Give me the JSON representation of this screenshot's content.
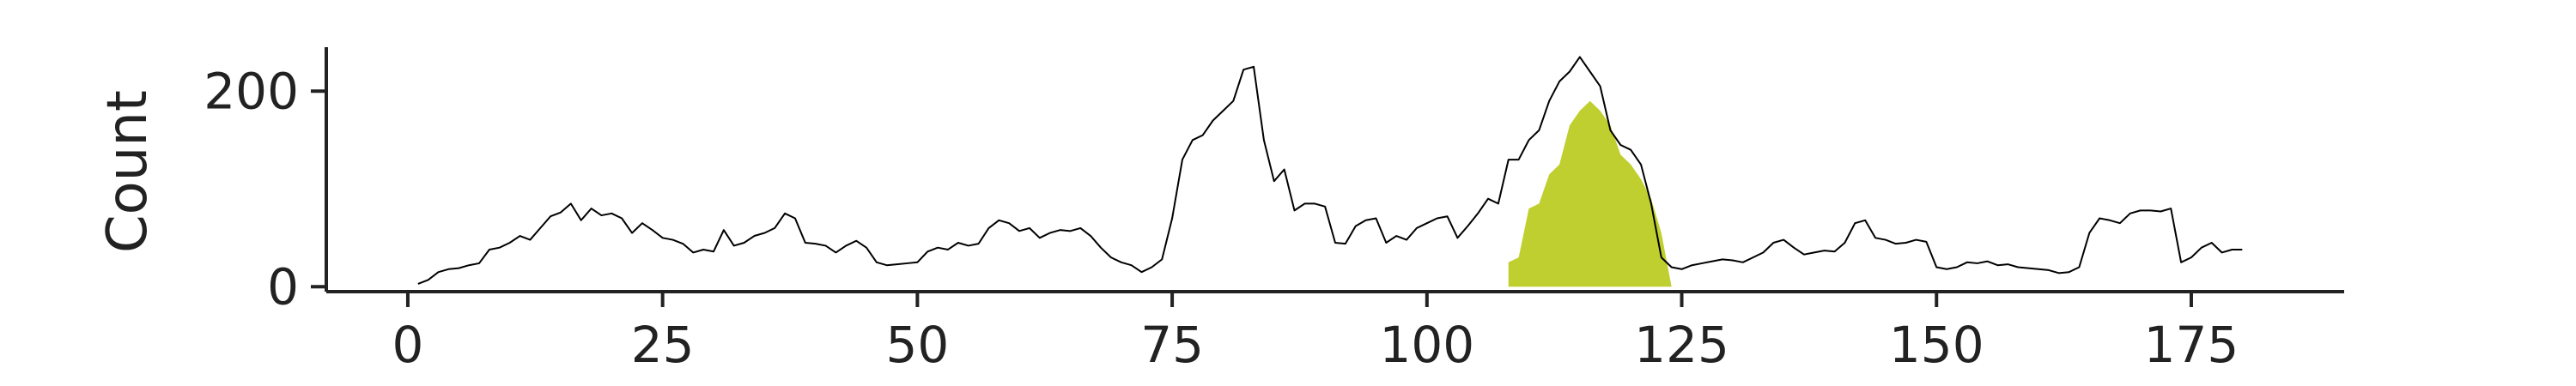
{
  "chart_data": {
    "type": "area",
    "title": "",
    "xlabel": "",
    "ylabel": "Count",
    "xlim": [
      -8,
      190
    ],
    "ylim": [
      -5,
      245
    ],
    "x_ticks": [
      0,
      25,
      50,
      75,
      100,
      125,
      150,
      175
    ],
    "y_ticks": [
      0,
      200
    ],
    "x_tick_labels": [
      "0",
      "25",
      "50",
      "75",
      "100",
      "125",
      "150",
      "175"
    ],
    "y_tick_labels": [
      "0",
      "200"
    ],
    "grid": false,
    "series": [
      {
        "kind": "line",
        "color": "#000000",
        "x": [
          1,
          2,
          3,
          4,
          5,
          6,
          7,
          8,
          9,
          10,
          11,
          12,
          13,
          14,
          15,
          16,
          17,
          18,
          19,
          20,
          21,
          22,
          23,
          24,
          25,
          26,
          27,
          28,
          29,
          30,
          31,
          32,
          33,
          34,
          35,
          36,
          37,
          38,
          39,
          40,
          41,
          42,
          43,
          44,
          45,
          46,
          47,
          48,
          49,
          50,
          51,
          52,
          53,
          54,
          55,
          56,
          57,
          58,
          59,
          60,
          61,
          62,
          63,
          64,
          65,
          66,
          67,
          68,
          69,
          70,
          71,
          72,
          73,
          74,
          75,
          76,
          77,
          78,
          79,
          80,
          81,
          82,
          83,
          84,
          85,
          86,
          87,
          88,
          89,
          90,
          91,
          92,
          93,
          94,
          95,
          96,
          97,
          98,
          99,
          100,
          101,
          102,
          103,
          104,
          105,
          106,
          107,
          108,
          109,
          110,
          111,
          112,
          113,
          114,
          115,
          116,
          117,
          118,
          119,
          120,
          121,
          122,
          123,
          124,
          125,
          126,
          127,
          128,
          129,
          130,
          131,
          132,
          133,
          134,
          135,
          136,
          137,
          138,
          139,
          140,
          141,
          142,
          143,
          144,
          145,
          146,
          147,
          148,
          149,
          150,
          151,
          152,
          153,
          154,
          155,
          156,
          157,
          158,
          159,
          160,
          161,
          162,
          163,
          164,
          165,
          166,
          167,
          168,
          169,
          170,
          171,
          172,
          173,
          174,
          175,
          176,
          177,
          178,
          179,
          180
        ],
        "y": [
          3,
          7,
          15,
          18,
          19,
          22,
          24,
          38,
          40,
          45,
          52,
          48,
          60,
          72,
          76,
          85,
          68,
          80,
          73,
          75,
          70,
          55,
          65,
          58,
          50,
          48,
          44,
          35,
          38,
          36,
          58,
          42,
          45,
          52,
          55,
          60,
          75,
          70,
          45,
          44,
          42,
          35,
          42,
          47,
          40,
          25,
          22,
          23,
          24,
          25,
          36,
          40,
          38,
          45,
          42,
          44,
          60,
          68,
          65,
          57,
          60,
          50,
          55,
          58,
          57,
          60,
          52,
          40,
          30,
          25,
          22,
          15,
          20,
          28,
          70,
          130,
          150,
          155,
          170,
          180,
          190,
          222,
          225,
          150,
          108,
          120,
          78,
          85,
          85,
          82,
          45,
          44,
          62,
          68,
          70,
          45,
          52,
          48,
          60,
          65,
          70,
          72,
          50,
          62,
          75,
          90,
          85,
          130,
          130,
          150,
          160,
          190,
          210,
          220,
          235,
          220,
          205,
          160,
          145,
          140,
          125,
          85,
          30,
          20,
          18,
          22,
          24,
          26,
          28,
          27,
          25,
          30,
          35,
          45,
          48,
          40,
          33,
          35,
          37,
          36,
          45,
          65,
          68,
          50,
          48,
          44,
          45,
          48,
          46,
          20,
          18,
          20,
          25,
          24,
          26,
          22,
          23,
          20,
          19,
          18,
          17,
          14,
          15,
          20,
          55,
          70,
          68,
          65,
          75,
          78,
          78,
          77,
          80,
          25,
          30,
          40,
          45,
          35,
          38,
          38
        ]
      },
      {
        "kind": "area",
        "color": "#bfcf2f",
        "x": [
          108,
          109,
          110,
          111,
          112,
          113,
          114,
          115,
          116,
          117,
          118,
          119,
          120,
          121,
          122,
          123,
          124
        ],
        "y": [
          25,
          30,
          80,
          85,
          115,
          125,
          165,
          180,
          190,
          180,
          165,
          135,
          125,
          110,
          90,
          55,
          0
        ]
      }
    ]
  }
}
